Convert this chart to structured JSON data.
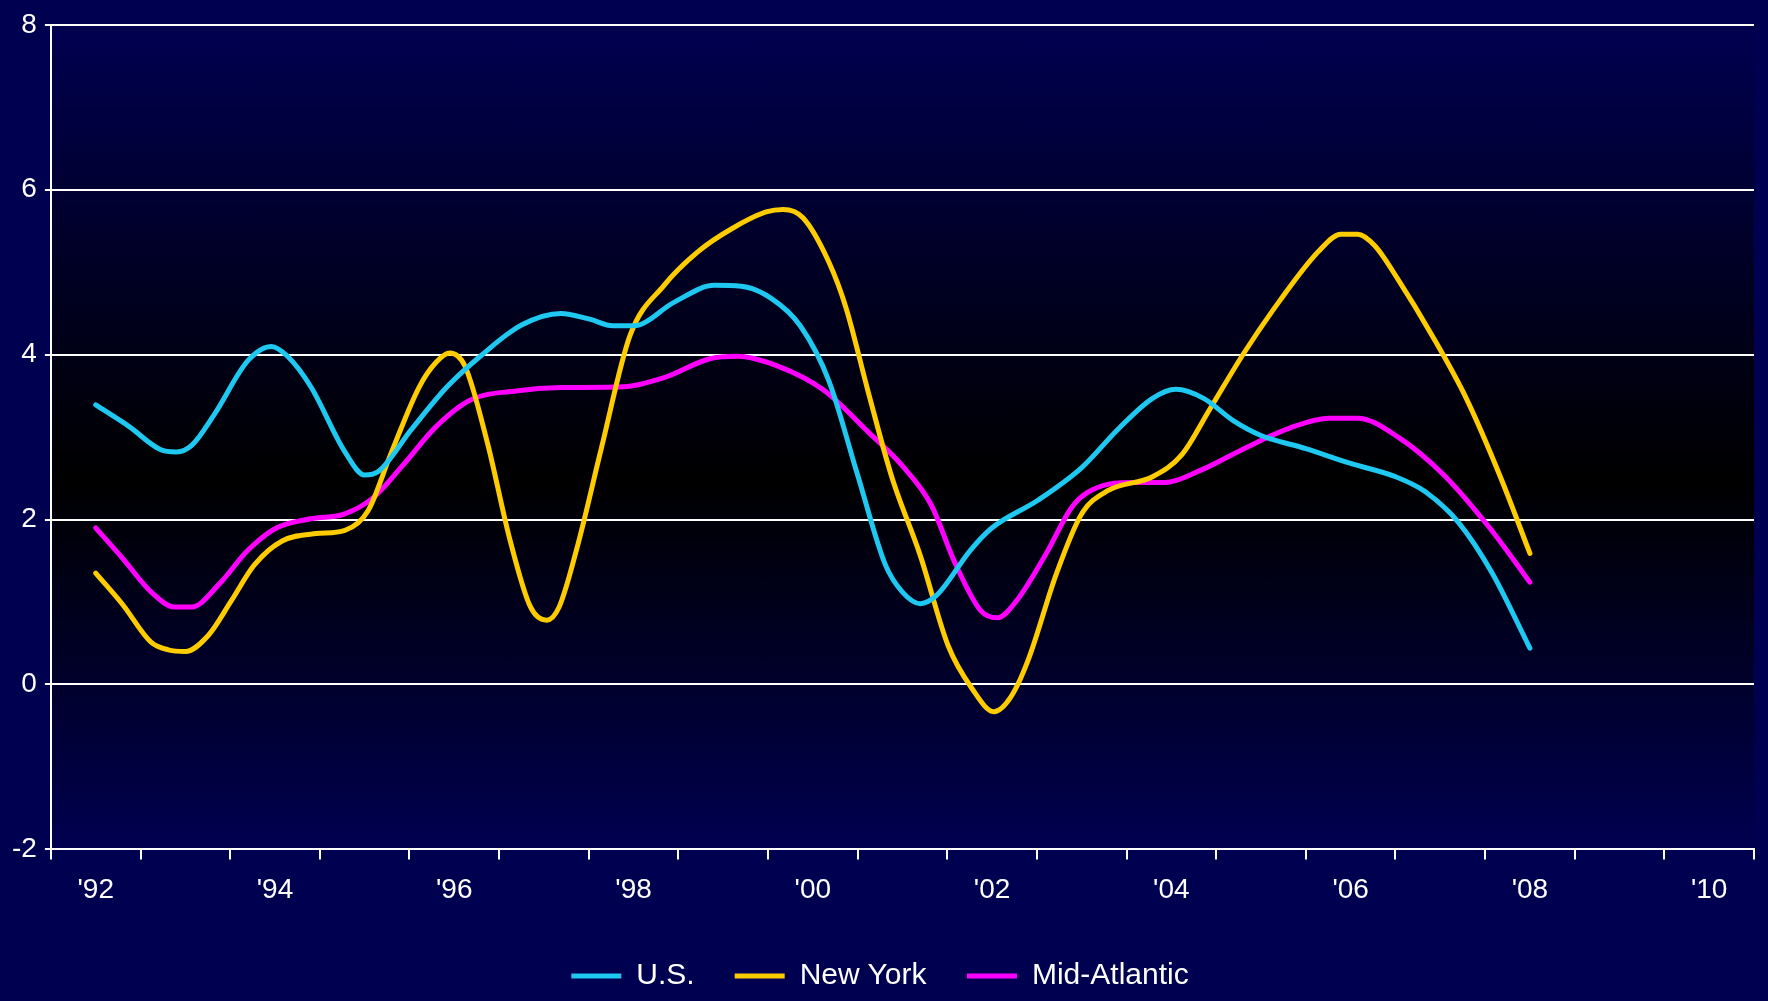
{
  "chart_data": {
    "type": "line",
    "xlim": [
      1991.5,
      2010.5
    ],
    "ylim": [
      -2,
      8
    ],
    "yticks": [
      -2,
      0,
      2,
      4,
      6,
      8
    ],
    "xticks": [
      {
        "value": 1991.5,
        "label": null
      },
      {
        "value": 1992,
        "label": "'92"
      },
      {
        "value": 1992.5,
        "label": null
      },
      {
        "value": 1993.5,
        "label": null
      },
      {
        "value": 1994,
        "label": "'94"
      },
      {
        "value": 1994.5,
        "label": null
      },
      {
        "value": 1995.5,
        "label": null
      },
      {
        "value": 1996,
        "label": "'96"
      },
      {
        "value": 1996.5,
        "label": null
      },
      {
        "value": 1997.5,
        "label": null
      },
      {
        "value": 1998,
        "label": "'98"
      },
      {
        "value": 1998.5,
        "label": null
      },
      {
        "value": 1999.5,
        "label": null
      },
      {
        "value": 2000,
        "label": "'00"
      },
      {
        "value": 2000.5,
        "label": null
      },
      {
        "value": 2001.5,
        "label": null
      },
      {
        "value": 2002,
        "label": "'02"
      },
      {
        "value": 2002.5,
        "label": null
      },
      {
        "value": 2003.5,
        "label": null
      },
      {
        "value": 2004,
        "label": "'04"
      },
      {
        "value": 2004.5,
        "label": null
      },
      {
        "value": 2005.5,
        "label": null
      },
      {
        "value": 2006,
        "label": "'06"
      },
      {
        "value": 2006.5,
        "label": null
      },
      {
        "value": 2007.5,
        "label": null
      },
      {
        "value": 2008,
        "label": "'08"
      },
      {
        "value": 2008.5,
        "label": null
      },
      {
        "value": 2009.5,
        "label": null
      },
      {
        "value": 2010,
        "label": "'10"
      },
      {
        "value": 2010.5,
        "label": null
      }
    ],
    "grid": "y",
    "legend": "bottom",
    "marker": "none",
    "line_style": "solid",
    "series": [
      {
        "name": "U.S.",
        "color": "#1ec8f0",
        "x": [
          1992.0,
          1992.37,
          1992.72,
          1992.9,
          1993.07,
          1993.32,
          1993.7,
          1993.96,
          1994.14,
          1994.4,
          1994.78,
          1995.0,
          1995.16,
          1995.52,
          1995.92,
          1996.3,
          1996.75,
          1997.19,
          1997.51,
          1997.77,
          1998.0,
          1998.46,
          1998.9,
          1999.2,
          1999.54,
          1999.86,
          2000.18,
          2000.5,
          2000.81,
          2001.0,
          2001.2,
          2001.38,
          2001.76,
          2002.0,
          2002.52,
          2003.0,
          2003.4,
          2003.79,
          2004.05,
          2004.36,
          2004.69,
          2005.0,
          2005.5,
          2006.0,
          2006.5,
          2006.83,
          2007.2,
          2007.58,
          2008.0
        ],
        "values": [
          3.39,
          3.13,
          2.85,
          2.82,
          2.9,
          3.27,
          3.93,
          4.1,
          3.98,
          3.61,
          2.82,
          2.54,
          2.59,
          3.09,
          3.61,
          3.99,
          4.36,
          4.5,
          4.43,
          4.35,
          4.35,
          4.64,
          4.84,
          4.83,
          4.68,
          4.35,
          3.68,
          2.54,
          1.45,
          1.12,
          0.98,
          1.08,
          1.63,
          1.9,
          2.24,
          2.63,
          3.09,
          3.47,
          3.58,
          3.47,
          3.2,
          3.02,
          2.86,
          2.68,
          2.52,
          2.34,
          1.97,
          1.35,
          0.44
        ]
      },
      {
        "name": "New York",
        "color": "#ffcc00",
        "x": [
          1992.0,
          1992.3,
          1992.62,
          1992.81,
          1993.0,
          1993.26,
          1993.51,
          1993.77,
          1994.08,
          1994.46,
          1994.78,
          1995.04,
          1995.29,
          1995.61,
          1995.8,
          1995.95,
          1996.12,
          1996.37,
          1996.62,
          1996.85,
          1997.03,
          1997.17,
          1997.38,
          1997.64,
          1997.96,
          1998.34,
          1998.72,
          1999.1,
          1999.48,
          1999.67,
          1999.89,
          2000.18,
          2000.37,
          2000.62,
          2000.88,
          2001.2,
          2001.51,
          2001.77,
          2002.02,
          2002.21,
          2002.4,
          2002.72,
          2003.0,
          2003.29,
          2003.79,
          2004.12,
          2004.43,
          2004.81,
          2005.2,
          2005.64,
          2005.89,
          2006.08,
          2006.27,
          2006.53,
          2006.91,
          2007.29,
          2007.67,
          2008.0
        ],
        "values": [
          1.35,
          0.97,
          0.51,
          0.42,
          0.4,
          0.6,
          1.01,
          1.45,
          1.74,
          1.83,
          1.87,
          2.11,
          2.79,
          3.61,
          3.91,
          4.02,
          3.86,
          2.93,
          1.76,
          0.94,
          0.78,
          0.94,
          1.7,
          2.86,
          4.23,
          4.84,
          5.25,
          5.53,
          5.73,
          5.76,
          5.66,
          5.12,
          4.57,
          3.54,
          2.52,
          1.56,
          0.47,
          -0.04,
          -0.33,
          -0.15,
          0.29,
          1.35,
          2.07,
          2.35,
          2.52,
          2.79,
          3.34,
          4.02,
          4.64,
          5.25,
          5.46,
          5.46,
          5.32,
          4.91,
          4.23,
          3.47,
          2.52,
          1.59
        ]
      },
      {
        "name": "Mid-Atlantic",
        "color": "#ff00ff",
        "x": [
          1992.0,
          1992.3,
          1992.62,
          1992.88,
          1993.07,
          1993.38,
          1993.7,
          1994.02,
          1994.4,
          1994.78,
          1995.1,
          1995.42,
          1995.8,
          1996.18,
          1996.69,
          1997.19,
          1997.89,
          1998.34,
          1998.85,
          1999.16,
          1999.61,
          2000.12,
          2000.62,
          2001.0,
          2001.32,
          2001.58,
          2001.87,
          2002.06,
          2002.27,
          2002.59,
          2002.91,
          2003.23,
          2003.55,
          2003.93,
          2004.31,
          2004.81,
          2005.32,
          2005.76,
          2006.08,
          2006.53,
          2007.04,
          2007.55,
          2008.0
        ],
        "values": [
          1.9,
          1.53,
          1.12,
          0.94,
          0.94,
          1.22,
          1.63,
          1.9,
          2.01,
          2.07,
          2.27,
          2.65,
          3.13,
          3.45,
          3.56,
          3.6,
          3.61,
          3.72,
          3.95,
          3.98,
          3.86,
          3.57,
          3.06,
          2.65,
          2.18,
          1.49,
          0.9,
          0.81,
          1.01,
          1.56,
          2.18,
          2.41,
          2.45,
          2.45,
          2.59,
          2.86,
          3.11,
          3.23,
          3.23,
          3.0,
          2.54,
          1.9,
          1.24
        ]
      }
    ]
  }
}
